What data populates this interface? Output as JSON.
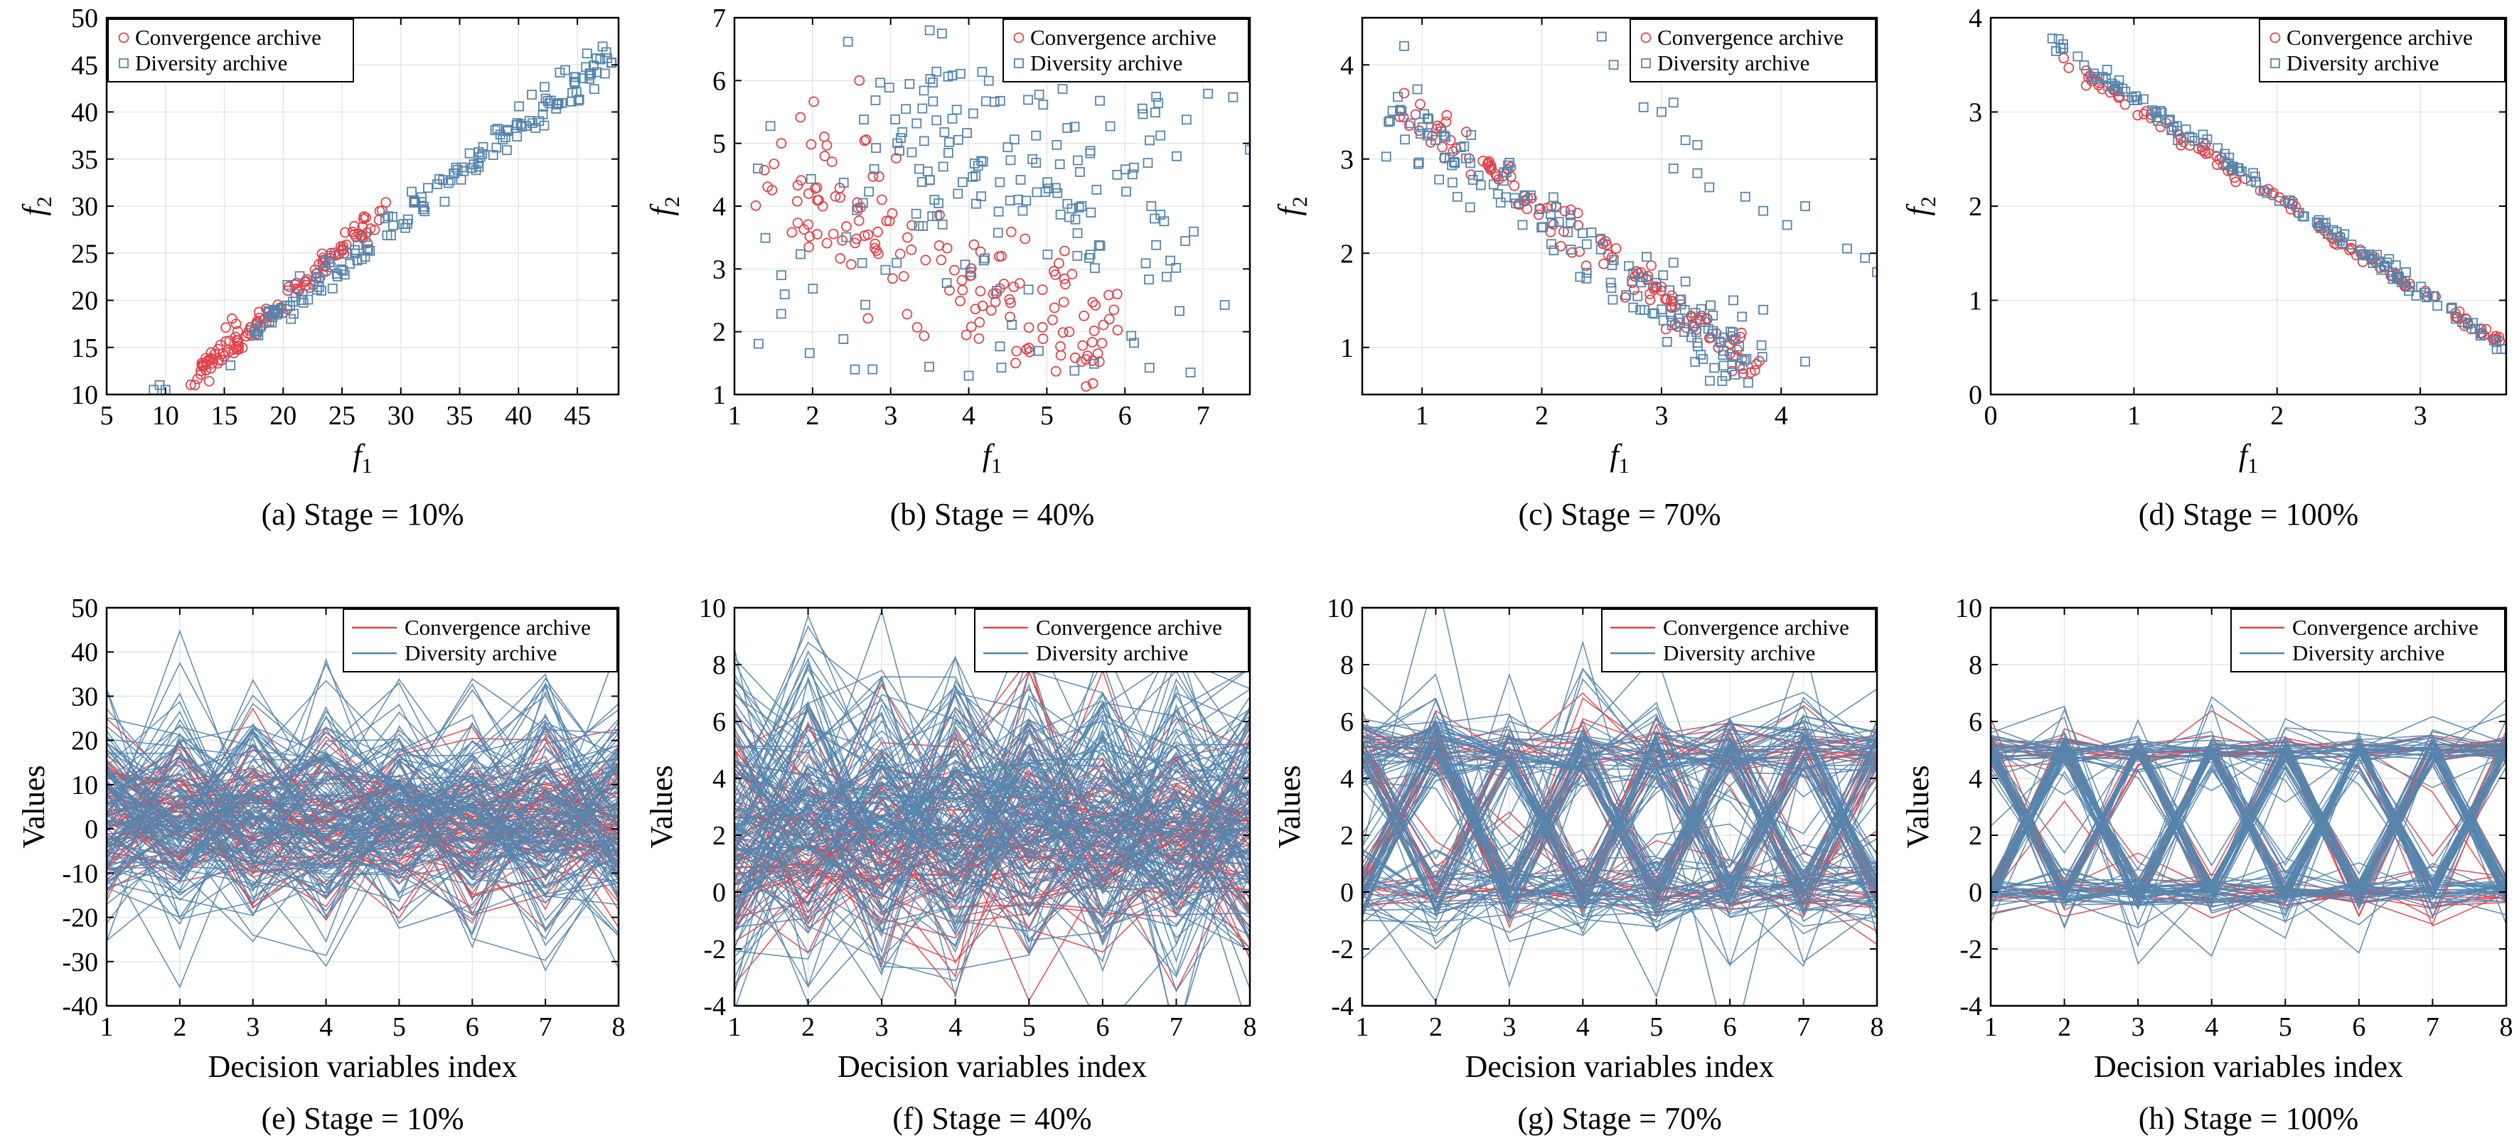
{
  "legend": {
    "convergence": "Convergence archive",
    "diversity": "Diversity archive"
  },
  "colors": {
    "convergence": "#e2434b",
    "diversity": "#5585ad",
    "axis": "#000000",
    "grid": "#e6e6e6"
  },
  "chart_data": [
    {
      "id": "a",
      "type": "scatter",
      "caption": "(a) Stage = 10%",
      "xlabel": "f1",
      "ylabel": "f2",
      "xlim": [
        5,
        48.5
      ],
      "ylim": [
        10,
        50
      ],
      "xticks": [
        5,
        10,
        15,
        20,
        25,
        30,
        35,
        40,
        45
      ],
      "yticks": [
        10,
        15,
        20,
        25,
        30,
        35,
        40,
        45,
        50
      ],
      "grid": true,
      "legend_position": "top-left",
      "series": [
        {
          "name": "Convergence archive",
          "marker": "circle",
          "pattern": "band",
          "from": [
            12,
            11.5
          ],
          "to": [
            28.5,
            29
          ],
          "spread": 1.4,
          "count": 130,
          "seed": 11,
          "extra": [
            [
              12.5,
              11
            ],
            [
              13,
              12.5
            ],
            [
              13.5,
              13.5
            ],
            [
              16,
              17.5
            ],
            [
              17,
              16.5
            ]
          ]
        },
        {
          "name": "Diversity archive",
          "marker": "square",
          "pattern": "band",
          "from": [
            16.5,
            16
          ],
          "to": [
            48.5,
            46.5
          ],
          "spread": 1.6,
          "count": 170,
          "seed": 23,
          "extra": [
            [
              9,
              10.5
            ],
            [
              9.5,
              11
            ],
            [
              10,
              10.5
            ]
          ]
        }
      ]
    },
    {
      "id": "b",
      "type": "scatter",
      "caption": "(b) Stage = 40%",
      "xlabel": "f1",
      "ylabel": "f2",
      "xlim": [
        1,
        7.6
      ],
      "ylim": [
        1,
        7
      ],
      "xticks": [
        1,
        2,
        3,
        4,
        5,
        6,
        7
      ],
      "yticks": [
        1,
        2,
        3,
        4,
        5,
        6,
        7
      ],
      "grid": true,
      "legend_position": "top-right",
      "series": [
        {
          "name": "Convergence archive",
          "marker": "circle",
          "pattern": "band",
          "from": [
            1.4,
            4.7
          ],
          "to": [
            5.8,
            1.6
          ],
          "spread": 0.45,
          "count": 150,
          "seed": 31,
          "extra": [
            [
              2.6,
              6
            ],
            [
              1.6,
              5
            ],
            [
              5.8,
              2.2
            ],
            [
              5.9,
              2.6
            ],
            [
              4.6,
              1.5
            ]
          ]
        },
        {
          "name": "Diversity archive",
          "marker": "square",
          "pattern": "cloud",
          "xr": [
            1.3,
            7.6
          ],
          "yr": [
            1.3,
            6.8
          ],
          "bias": [
            5.2,
            5.0
          ],
          "count": 190,
          "seed": 47,
          "extra": [
            [
              1.3,
              4.6
            ],
            [
              1.6,
              2.9
            ],
            [
              3.5,
              6.8
            ],
            [
              4.0,
              1.3
            ],
            [
              7.6,
              4.9
            ]
          ]
        }
      ]
    },
    {
      "id": "c",
      "type": "scatter",
      "caption": "(c) Stage = 70%",
      "xlabel": "f1",
      "ylabel": "f2",
      "xlim": [
        0.5,
        4.8
      ],
      "ylim": [
        0.5,
        4.5
      ],
      "xticks": [
        1,
        2,
        3,
        4
      ],
      "yticks": [
        1,
        2,
        3,
        4
      ],
      "grid": true,
      "legend_position": "top-right",
      "series": [
        {
          "name": "Convergence archive",
          "marker": "circle",
          "pattern": "band",
          "from": [
            0.8,
            3.6
          ],
          "to": [
            3.8,
            0.8
          ],
          "spread": 0.08,
          "count": 130,
          "seed": 53,
          "extra": [
            [
              0.85,
              3.7
            ],
            [
              3.3,
              1.3
            ]
          ]
        },
        {
          "name": "Diversity archive",
          "marker": "square",
          "pattern": "band",
          "from": [
            0.75,
            3.55
          ],
          "to": [
            3.8,
            0.7
          ],
          "spread": 0.14,
          "count": 150,
          "seed": 67,
          "extra": [
            [
              0.85,
              4.2
            ],
            [
              2.6,
              4.0
            ],
            [
              2.85,
              3.55
            ],
            [
              3.0,
              3.5
            ],
            [
              3.1,
              3.6
            ],
            [
              3.2,
              3.2
            ],
            [
              3.3,
              3.15
            ],
            [
              3.1,
              2.9
            ],
            [
              3.3,
              2.85
            ],
            [
              3.4,
              2.7
            ],
            [
              3.7,
              2.6
            ],
            [
              3.85,
              2.45
            ],
            [
              4.2,
              2.5
            ],
            [
              4.05,
              2.3
            ],
            [
              4.55,
              2.05
            ],
            [
              4.7,
              1.95
            ],
            [
              4.8,
              1.8
            ],
            [
              3.1,
              1.9
            ],
            [
              3.2,
              1.7
            ],
            [
              3.6,
              1.5
            ],
            [
              3.85,
              1.4
            ],
            [
              4.2,
              0.85
            ],
            [
              3.3,
              1.05
            ],
            [
              2.5,
              4.3
            ]
          ]
        }
      ]
    },
    {
      "id": "d",
      "type": "scatter",
      "caption": "(d) Stage = 100%",
      "xlabel": "f1",
      "ylabel": "f2",
      "xlim": [
        0,
        3.6
      ],
      "ylim": [
        0,
        4
      ],
      "xticks": [
        0,
        1,
        2,
        3
      ],
      "yticks": [
        0,
        1,
        2,
        3,
        4
      ],
      "grid": true,
      "legend_position": "top-right",
      "series": [
        {
          "name": "Convergence archive",
          "marker": "circle",
          "pattern": "band",
          "from": [
            0.45,
            3.6
          ],
          "to": [
            3.6,
            0.5
          ],
          "spread": 0.03,
          "count": 120,
          "seed": 71,
          "extra": []
        },
        {
          "name": "Diversity archive",
          "marker": "square",
          "pattern": "band",
          "from": [
            0.42,
            3.75
          ],
          "to": [
            3.6,
            0.48
          ],
          "spread": 0.03,
          "count": 140,
          "seed": 83,
          "extra": [
            [
              0.43,
              3.78
            ]
          ]
        }
      ]
    },
    {
      "id": "e",
      "type": "line",
      "caption": "(e) Stage = 10%",
      "xlabel": "Decision variables index",
      "ylabel": "Values",
      "xlim": [
        1,
        8
      ],
      "ylim": [
        -40,
        50
      ],
      "xticks": [
        1,
        2,
        3,
        4,
        5,
        6,
        7,
        8
      ],
      "yticks": [
        -40,
        -30,
        -20,
        -10,
        0,
        10,
        20,
        30,
        40,
        50
      ],
      "grid": true,
      "legend_position": "top-right",
      "series": [
        {
          "name": "Convergence archive",
          "pattern": "noise",
          "center": 2,
          "sd": 9,
          "count": 60,
          "seed": 101
        },
        {
          "name": "Diversity archive",
          "pattern": "noise",
          "center": 3,
          "sd": 13,
          "count": 120,
          "seed": 103
        }
      ]
    },
    {
      "id": "f",
      "type": "line",
      "caption": "(f) Stage = 40%",
      "xlabel": "Decision variables index",
      "ylabel": "Values",
      "xlim": [
        1,
        8
      ],
      "ylim": [
        -4,
        10
      ],
      "xticks": [
        1,
        2,
        3,
        4,
        5,
        6,
        7,
        8
      ],
      "yticks": [
        -4,
        -2,
        0,
        2,
        4,
        6,
        8,
        10
      ],
      "grid": true,
      "legend_position": "top-right",
      "series": [
        {
          "name": "Convergence archive",
          "pattern": "noise",
          "center": 1.8,
          "sd": 2.0,
          "count": 60,
          "seed": 107
        },
        {
          "name": "Diversity archive",
          "pattern": "noise",
          "center": 2.6,
          "sd": 2.6,
          "count": 130,
          "seed": 109
        }
      ]
    },
    {
      "id": "g",
      "type": "line",
      "caption": "(g) Stage = 70%",
      "xlabel": "Decision variables index",
      "ylabel": "Values",
      "xlim": [
        1,
        8
      ],
      "ylim": [
        -4,
        10
      ],
      "xticks": [
        1,
        2,
        3,
        4,
        5,
        6,
        7,
        8
      ],
      "yticks": [
        -4,
        -2,
        0,
        2,
        4,
        6,
        8,
        10
      ],
      "grid": true,
      "legend_position": "top-right",
      "series": [
        {
          "name": "Convergence archive",
          "pattern": "binary",
          "low": 0,
          "high": 5,
          "jitter": 0.45,
          "count": 40,
          "seed": 113
        },
        {
          "name": "Diversity archive",
          "pattern": "binary",
          "low": 0,
          "high": 5,
          "jitter": 0.6,
          "count": 110,
          "seed": 127
        }
      ]
    },
    {
      "id": "h",
      "type": "line",
      "caption": "(h) Stage = 100%",
      "xlabel": "Decision variables index",
      "ylabel": "Values",
      "xlim": [
        1,
        8
      ],
      "ylim": [
        -4,
        10
      ],
      "xticks": [
        1,
        2,
        3,
        4,
        5,
        6,
        7,
        8
      ],
      "yticks": [
        -4,
        -2,
        0,
        2,
        4,
        6,
        8,
        10
      ],
      "grid": true,
      "legend_position": "top-right",
      "series": [
        {
          "name": "Convergence archive",
          "pattern": "binary",
          "low": 0,
          "high": 5,
          "jitter": 0.25,
          "count": 35,
          "seed": 131
        },
        {
          "name": "Diversity archive",
          "pattern": "binary",
          "low": 0,
          "high": 5,
          "jitter": 0.3,
          "count": 100,
          "seed": 137
        }
      ]
    }
  ]
}
